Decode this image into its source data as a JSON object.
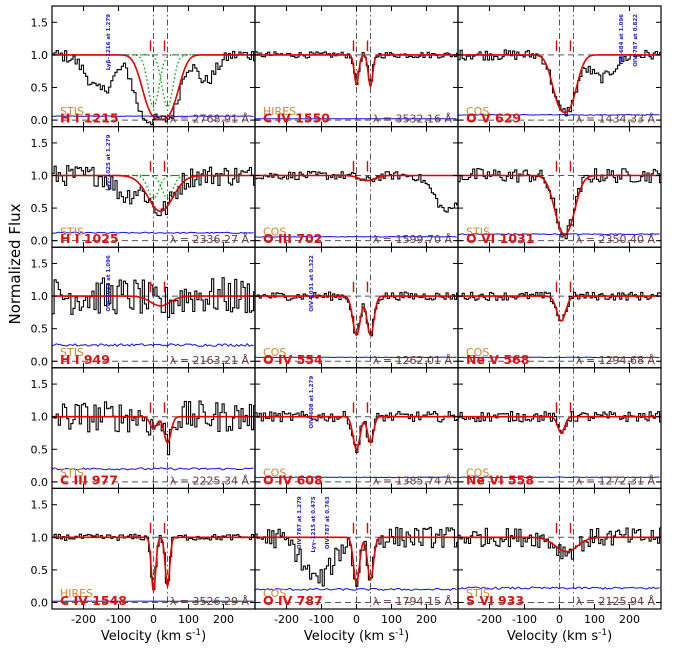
{
  "figure": {
    "ylabel": "Normalized Flux",
    "xlabel": "Velocity (km s",
    "xlabel_sup": "-1",
    "xlabel_end": ")"
  },
  "colors": {
    "data": "#000000",
    "model": "#e00000",
    "error": "#1010dd",
    "component": "#00a000",
    "marker": "#e00000",
    "guide": "#555555",
    "ion_label": "#dd1111",
    "instrument": "#cc8833",
    "wavelength": "#6a3a3a",
    "annotation": "#1a1acc"
  },
  "chart_data": {
    "type": "line",
    "layout": "5 rows x 3 columns of velocity-stack panels",
    "xlim": [
      -290,
      290
    ],
    "ylim": [
      -0.1,
      1.75
    ],
    "xticks": [
      -200,
      -100,
      0,
      100,
      200
    ],
    "xtick_labels": [
      "-200",
      "-100",
      "0",
      "100",
      "200"
    ],
    "yticks": [
      0.0,
      0.5,
      1.0,
      1.5
    ],
    "ytick_labels": [
      "0.0",
      "0.5",
      "1.0",
      "1.5"
    ],
    "component_velocities": [
      0,
      40
    ],
    "reference_lines": {
      "vertical": [
        0,
        40
      ],
      "horizontal": [
        0,
        1
      ]
    },
    "panels": [
      {
        "ion": "H I 1215",
        "instrument": "STIS",
        "wavelength": "λ = 2768.91 Å",
        "annotation": "Lyβ–1216 at 1.279",
        "noise": 0.06,
        "err": 0.06,
        "absorbers": [
          {
            "v": 0,
            "depth": 0.98,
            "width": 62,
            "power": 3
          },
          {
            "v": -150,
            "depth": 0.55,
            "width": 55,
            "power": 2
          },
          {
            "v": 150,
            "depth": 0.4,
            "width": 40,
            "power": 2
          }
        ],
        "model": [
          {
            "v": 20,
            "depth": 0.99,
            "width": 60,
            "power": 3
          }
        ],
        "components": [
          {
            "v": 0,
            "depth": 0.8,
            "width": 22
          },
          {
            "v": 40,
            "depth": 0.8,
            "width": 22
          }
        ]
      },
      {
        "ion": "C IV 1550",
        "instrument": "HIRES",
        "wavelength": "λ = 3532.16 Å",
        "annotation": "",
        "noise": 0.03,
        "err": 0.02,
        "absorbers": [],
        "model": [
          {
            "v": 0,
            "depth": 0.45,
            "width": 9,
            "power": 2
          },
          {
            "v": 40,
            "depth": 0.48,
            "width": 9,
            "power": 2
          }
        ],
        "components": []
      },
      {
        "ion": "O V 629",
        "instrument": "COS",
        "wavelength": "λ = 1434.33 Å",
        "annotation": "NII–684 at 1.096|OIV–787 at 0.822",
        "noise": 0.05,
        "err": 0.08,
        "absorbers": [
          {
            "v": 120,
            "depth": 0.35,
            "width": 50,
            "power": 2
          }
        ],
        "model": [
          {
            "v": 15,
            "depth": 0.88,
            "width": 42,
            "power": 2.5
          }
        ],
        "components": []
      },
      {
        "ion": "H I 1025",
        "instrument": "STIS",
        "wavelength": "λ = 2336.27 Å",
        "annotation": "Lyγ–1025 at 1.279",
        "noise": 0.1,
        "err": 0.12,
        "absorbers": [
          {
            "v": -80,
            "depth": 0.3,
            "width": 40,
            "power": 2
          }
        ],
        "model": [
          {
            "v": 20,
            "depth": 0.55,
            "width": 50,
            "power": 2
          }
        ],
        "components": [
          {
            "v": 0,
            "depth": 0.35,
            "width": 22
          },
          {
            "v": 40,
            "depth": 0.35,
            "width": 22
          }
        ]
      },
      {
        "ion": "O III 702",
        "instrument": "COS",
        "wavelength": "λ = 1599.70 Å",
        "annotation": "",
        "noise": 0.04,
        "err": 0.06,
        "absorbers": [
          {
            "v": 260,
            "depth": 0.55,
            "width": 50,
            "power": 2
          }
        ],
        "model": [
          {
            "v": 30,
            "depth": 0.08,
            "width": 30,
            "power": 2
          }
        ],
        "components": []
      },
      {
        "ion": "O VI 1031",
        "instrument": "STIS",
        "wavelength": "λ = 2350.40 Å",
        "annotation": "",
        "noise": 0.07,
        "err": 0.1,
        "absorbers": [],
        "model": [
          {
            "v": 15,
            "depth": 0.9,
            "width": 38,
            "power": 2.2
          }
        ],
        "components": []
      },
      {
        "ion": "H I 949",
        "instrument": "STIS",
        "wavelength": "λ = 2163.21 Å",
        "annotation": "OVI–1031 at 1.096",
        "noise": 0.18,
        "err": 0.25,
        "absorbers": [],
        "model": [
          {
            "v": 20,
            "depth": 0.15,
            "width": 40,
            "power": 2
          }
        ],
        "components": []
      },
      {
        "ion": "O IV 554",
        "instrument": "COS",
        "wavelength": "λ = 1262.01 Å",
        "annotation": "OIV–1031 at 0.322",
        "noise": 0.04,
        "err": 0.06,
        "absorbers": [],
        "model": [
          {
            "v": 0,
            "depth": 0.6,
            "width": 15,
            "power": 2
          },
          {
            "v": 40,
            "depth": 0.6,
            "width": 14,
            "power": 2
          }
        ],
        "components": []
      },
      {
        "ion": "Ne V 568",
        "instrument": "COS",
        "wavelength": "λ = 1294.68 Å",
        "annotation": "",
        "noise": 0.04,
        "err": 0.06,
        "absorbers": [],
        "model": [
          {
            "v": 5,
            "depth": 0.38,
            "width": 18,
            "power": 2
          }
        ],
        "components": []
      },
      {
        "ion": "C III 977",
        "instrument": "STIS",
        "wavelength": "λ = 2225.34 Å",
        "annotation": "",
        "noise": 0.15,
        "err": 0.2,
        "absorbers": [],
        "model": [
          {
            "v": 0,
            "depth": 0.18,
            "width": 14,
            "power": 2
          },
          {
            "v": 40,
            "depth": 0.4,
            "width": 14,
            "power": 2
          }
        ],
        "components": []
      },
      {
        "ion": "O IV 608",
        "instrument": "COS",
        "wavelength": "λ = 1385.74 Å",
        "annotation": "OIV–608 at 1.279",
        "noise": 0.05,
        "err": 0.07,
        "absorbers": [],
        "model": [
          {
            "v": 0,
            "depth": 0.5,
            "width": 14,
            "power": 2
          },
          {
            "v": 40,
            "depth": 0.4,
            "width": 12,
            "power": 2
          }
        ],
        "components": []
      },
      {
        "ion": "Ne VI 558",
        "instrument": "COS",
        "wavelength": "λ = 1272.31 Å",
        "annotation": "",
        "noise": 0.05,
        "err": 0.07,
        "absorbers": [],
        "model": [
          {
            "v": 5,
            "depth": 0.25,
            "width": 14,
            "power": 2
          }
        ],
        "components": []
      },
      {
        "ion": "C IV 1548",
        "instrument": "HIRES",
        "wavelength": "λ = 3526.29 Å",
        "annotation": "",
        "noise": 0.03,
        "err": 0.02,
        "absorbers": [],
        "model": [
          {
            "v": 0,
            "depth": 0.82,
            "width": 9,
            "power": 2
          },
          {
            "v": 40,
            "depth": 0.75,
            "width": 9,
            "power": 2
          }
        ],
        "components": []
      },
      {
        "ion": "O IV 787",
        "instrument": "COS",
        "wavelength": "λ = 1794.15 Å",
        "annotation": "OIV–787 at 1.279|Lyγ–1215 at 0.475|OIV–787 at 0.763",
        "noise": 0.1,
        "err": 0.2,
        "absorbers": [
          {
            "v": -110,
            "depth": 0.65,
            "width": 60,
            "power": 2
          }
        ],
        "model": [
          {
            "v": 0,
            "depth": 0.7,
            "width": 12,
            "power": 2
          },
          {
            "v": 40,
            "depth": 0.65,
            "width": 12,
            "power": 2
          }
        ],
        "components": []
      },
      {
        "ion": "S VI 933",
        "instrument": "STIS",
        "wavelength": "λ = 2125.94 Å",
        "annotation": "",
        "noise": 0.09,
        "err": 0.22,
        "absorbers": [],
        "model": [
          {
            "v": 20,
            "depth": 0.22,
            "width": 45,
            "power": 2
          }
        ],
        "components": []
      }
    ]
  }
}
